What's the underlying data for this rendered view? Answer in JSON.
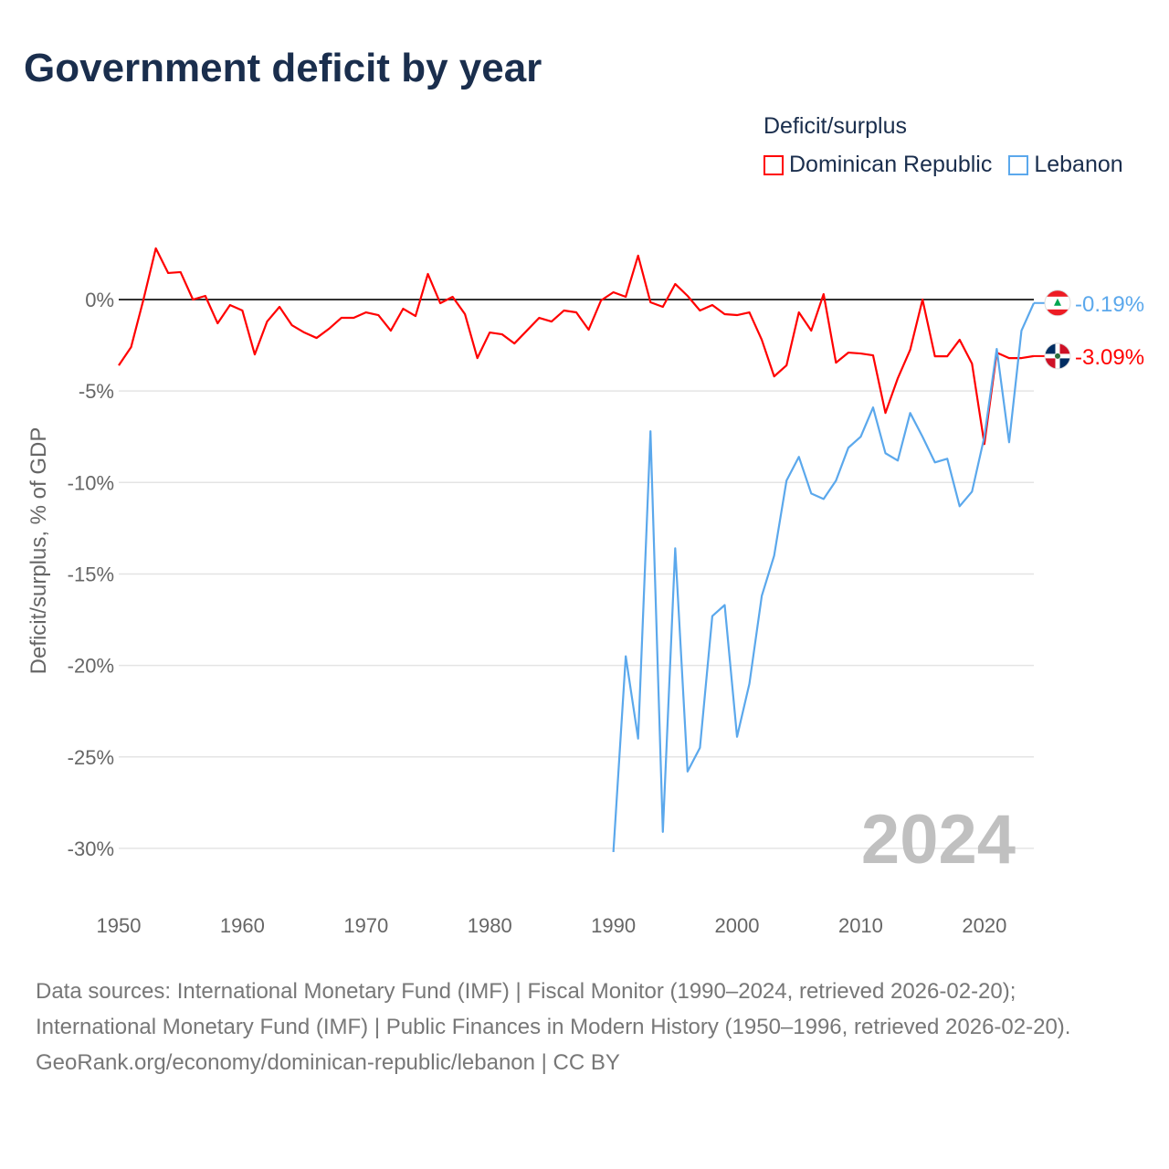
{
  "title": "Government deficit by year",
  "legend": {
    "title": "Deficit/surplus",
    "items": [
      {
        "name": "Dominican Republic",
        "color": "#ff0000"
      },
      {
        "name": "Lebanon",
        "color": "#5ba8ec"
      }
    ]
  },
  "chart_data": {
    "type": "line",
    "title": "Government deficit by year",
    "xlabel": "",
    "ylabel": "Deficit/surplus, % of GDP",
    "xlim": [
      1950,
      2024
    ],
    "ylim": [
      -30,
      0
    ],
    "x_ticks": [
      1950,
      1960,
      1970,
      1980,
      1990,
      2000,
      2010,
      2020
    ],
    "y_ticks": [
      {
        "v": 0,
        "label": "0%"
      },
      {
        "v": -5,
        "label": "-5%"
      },
      {
        "v": -10,
        "label": "-10%"
      },
      {
        "v": -15,
        "label": "-15%"
      },
      {
        "v": -20,
        "label": "-20%"
      },
      {
        "v": -25,
        "label": "-25%"
      },
      {
        "v": -30,
        "label": "-30%"
      }
    ],
    "watermark_year": "2024",
    "series": [
      {
        "name": "Dominican Republic",
        "color": "#ff0000",
        "start_year": 1950,
        "end_label": "-3.09%",
        "flag": "dominican-republic",
        "values": [
          -3.6,
          -2.6,
          0,
          2.8,
          1.45,
          1.5,
          0,
          0.2,
          -1.3,
          -0.3,
          -0.6,
          -3.0,
          -1.2,
          -0.4,
          -1.4,
          -1.8,
          -2.1,
          -1.6,
          -1.0,
          -1.0,
          -0.7,
          -0.85,
          -1.7,
          -0.5,
          -0.9,
          1.4,
          -0.2,
          0.15,
          -0.8,
          -3.2,
          -1.8,
          -1.9,
          -2.4,
          -1.7,
          -1.0,
          -1.2,
          -0.6,
          -0.7,
          -1.65,
          -0.05,
          0.4,
          0.15,
          2.4,
          -0.15,
          -0.4,
          0.85,
          0.2,
          -0.6,
          -0.3,
          -0.8,
          -0.85,
          -0.7,
          -2.2,
          -4.2,
          -3.6,
          -0.7,
          -1.7,
          0.3,
          -3.45,
          -2.9,
          -2.95,
          -3.05,
          -6.2,
          -4.3,
          -2.75,
          0.0,
          -3.1,
          -3.1,
          -2.2,
          -3.5,
          -7.9,
          -2.9,
          -3.2,
          -3.2,
          -3.09
        ]
      },
      {
        "name": "Lebanon",
        "color": "#5ba8ec",
        "start_year": 1990,
        "end_label": "-0.19%",
        "flag": "lebanon",
        "values": [
          -30.2,
          -19.5,
          -24.0,
          -7.2,
          -29.1,
          -13.6,
          -25.8,
          -24.5,
          -17.3,
          -16.7,
          -23.9,
          -21.0,
          -16.2,
          -14.0,
          -9.9,
          -8.6,
          -10.6,
          -10.9,
          -9.9,
          -8.1,
          -7.5,
          -5.9,
          -8.4,
          -8.8,
          -6.2,
          -7.5,
          -8.9,
          -8.7,
          -11.3,
          -10.5,
          -7.5,
          -2.7,
          -7.8,
          -1.7,
          -0.19
        ]
      }
    ]
  },
  "footer": {
    "sources": "Data sources: International Monetary Fund (IMF) | Fiscal Monitor (1990–2024, retrieved 2026-02-20); International Monetary Fund (IMF) | Public Finances in Modern History (1950–1996, retrieved 2026-02-20).",
    "link": "GeoRank.org/economy/dominican-republic/lebanon | CC BY"
  }
}
